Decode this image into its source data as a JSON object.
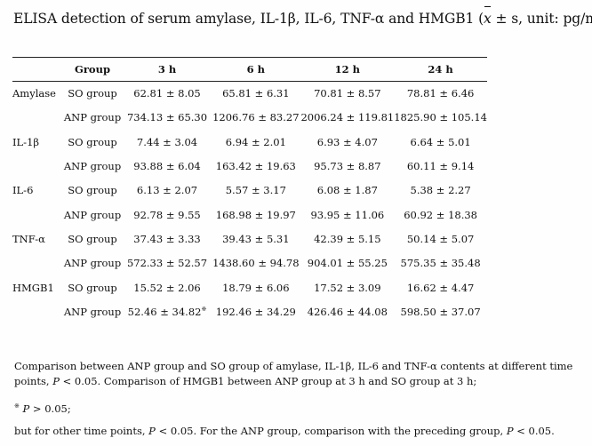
{
  "title": {
    "prefix": "ELISA detection of serum amylase, IL-1β, IL-6, TNF-α and HMGB1 (",
    "xbar": "x",
    "suffix": " ± s, unit: pg/ml)"
  },
  "table": {
    "headers": {
      "analyte": "",
      "group": "Group",
      "t3": "3 h",
      "t6": "6 h",
      "t12": "12 h",
      "t24": "24 h"
    },
    "rows": [
      {
        "analyte": "Amylase",
        "group": "SO group",
        "t3": "62.81 ± 8.05",
        "t6": "65.81 ± 6.31",
        "t12": "70.81 ± 8.57",
        "t24": "78.81 ± 6.46"
      },
      {
        "analyte": "",
        "group": "ANP group",
        "t3": "734.13 ± 65.30",
        "t6": "1206.76 ± 83.27",
        "t12": "2006.24 ± 119.81",
        "t24": "1825.90 ± 105.14"
      },
      {
        "analyte": "IL-1β",
        "group": "SO group",
        "t3": "7.44 ± 3.04",
        "t6": "6.94 ± 2.01",
        "t12": "6.93 ± 4.07",
        "t24": "6.64 ± 5.01"
      },
      {
        "analyte": "",
        "group": "ANP group",
        "t3": "93.88 ± 6.04",
        "t6": "163.42 ± 19.63",
        "t12": "95.73 ± 8.87",
        "t24": "60.11 ± 9.14"
      },
      {
        "analyte": "IL-6",
        "group": "SO group",
        "t3": "6.13 ± 2.07",
        "t6": "5.57 ± 3.17",
        "t12": "6.08 ± 1.87",
        "t24": "5.38 ± 2.27"
      },
      {
        "analyte": "",
        "group": "ANP group",
        "t3": "92.78 ± 9.55",
        "t6": "168.98 ± 19.97",
        "t12": "93.95 ± 11.06",
        "t24": "60.92 ± 18.38"
      },
      {
        "analyte": "TNF-α",
        "group": "SO group",
        "t3": "37.43 ± 3.33",
        "t6": "39.43 ± 5.31",
        "t12": "42.39 ± 5.15",
        "t24": "50.14 ± 5.07"
      },
      {
        "analyte": "",
        "group": "ANP group",
        "t3": "572.33 ± 52.57",
        "t6": "1438.60 ± 94.78",
        "t12": "904.01 ± 55.25",
        "t24": "575.35 ± 35.48"
      },
      {
        "analyte": "HMGB1",
        "group": "SO group",
        "t3": "15.52 ± 2.06",
        "t6": "18.79 ± 6.06",
        "t12": "17.52 ± 3.09",
        "t24": "16.62 ± 4.47"
      },
      {
        "analyte": "",
        "group": "ANP group",
        "t3": "52.46 ± 34.82",
        "t3_mark": "※",
        "t6": "192.46 ± 34.29",
        "t12": "426.46 ± 44.08",
        "t24": "598.50 ± 37.07"
      }
    ]
  },
  "footnotes": {
    "line1_a": "Comparison between ANP group and SO group of amylase, IL-1β, IL-6 and TNF-α contents at different time points, ",
    "p": "P",
    "line1_b": " < 0.05. Comparison of HMGB1 between ANP group at 3 h and SO group at 3 h;",
    "line2_mark": "※",
    "line2_b": " > 0.05;",
    "line3_a": "but for other time points, ",
    "line3_b": " < 0.05. For the ANP group, comparison with the preceding group, ",
    "line3_c": " < 0.05."
  }
}
